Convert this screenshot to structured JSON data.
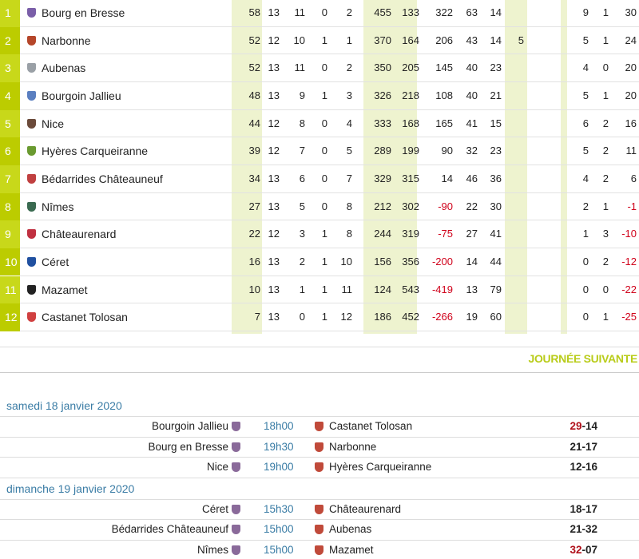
{
  "standings": {
    "rows": [
      {
        "rank": 1,
        "team": "Bourg en Bresse",
        "stats": [
          58,
          13,
          11,
          0,
          2,
          455,
          133,
          322,
          63,
          14,
          null,
          9,
          1,
          30
        ]
      },
      {
        "rank": 2,
        "team": "Narbonne",
        "stats": [
          52,
          12,
          10,
          1,
          1,
          370,
          164,
          206,
          43,
          14,
          5,
          5,
          1,
          24
        ]
      },
      {
        "rank": 3,
        "team": "Aubenas",
        "stats": [
          52,
          13,
          11,
          0,
          2,
          350,
          205,
          145,
          40,
          23,
          null,
          4,
          0,
          20
        ]
      },
      {
        "rank": 4,
        "team": "Bourgoin Jallieu",
        "stats": [
          48,
          13,
          9,
          1,
          3,
          326,
          218,
          108,
          40,
          21,
          null,
          5,
          1,
          20
        ]
      },
      {
        "rank": 5,
        "team": "Nice",
        "stats": [
          44,
          12,
          8,
          0,
          4,
          333,
          168,
          165,
          41,
          15,
          null,
          6,
          2,
          16
        ]
      },
      {
        "rank": 6,
        "team": "Hyères Carqueiranne",
        "stats": [
          39,
          12,
          7,
          0,
          5,
          289,
          199,
          90,
          32,
          23,
          null,
          5,
          2,
          11
        ]
      },
      {
        "rank": 7,
        "team": "Bédarrides Châteauneuf",
        "stats": [
          34,
          13,
          6,
          0,
          7,
          329,
          315,
          14,
          46,
          36,
          null,
          4,
          2,
          6
        ]
      },
      {
        "rank": 8,
        "team": "Nîmes",
        "stats": [
          27,
          13,
          5,
          0,
          8,
          212,
          302,
          -90,
          22,
          30,
          null,
          2,
          1,
          -1
        ]
      },
      {
        "rank": 9,
        "team": "Châteaurenard",
        "stats": [
          22,
          12,
          3,
          1,
          8,
          244,
          319,
          -75,
          27,
          41,
          null,
          1,
          3,
          -10
        ]
      },
      {
        "rank": 10,
        "team": "Céret",
        "stats": [
          16,
          13,
          2,
          1,
          10,
          156,
          356,
          -200,
          14,
          44,
          null,
          0,
          2,
          -12
        ]
      },
      {
        "rank": 11,
        "team": "Mazamet",
        "stats": [
          10,
          13,
          1,
          1,
          11,
          124,
          543,
          -419,
          13,
          79,
          null,
          0,
          0,
          -22
        ]
      },
      {
        "rank": 12,
        "team": "Castanet Tolosan",
        "stats": [
          7,
          13,
          0,
          1,
          12,
          186,
          452,
          -266,
          19,
          60,
          null,
          0,
          1,
          -25
        ]
      }
    ]
  },
  "next_round": {
    "title": "JOURNÉE SUIVANTE",
    "days": [
      {
        "date": "samedi 18 janvier 2020",
        "matches": [
          {
            "home": "Bourgoin Jallieu",
            "time": "18h00",
            "away": "Castanet Tolosan",
            "score": "29-14",
            "highlight": "home"
          },
          {
            "home": "Bourg en Bresse",
            "time": "19h30",
            "away": "Narbonne",
            "score": "21-17"
          },
          {
            "home": "Nice",
            "time": "19h00",
            "away": "Hyères Carqueiranne",
            "score": "12-16"
          }
        ]
      },
      {
        "date": "dimanche 19 janvier 2020",
        "matches": [
          {
            "home": "Céret",
            "time": "15h30",
            "away": "Châteaurenard",
            "score": "18-17"
          },
          {
            "home": "Bédarrides Châteauneuf",
            "time": "15h00",
            "away": "Aubenas",
            "score": "21-32"
          },
          {
            "home": "Nîmes",
            "time": "15h00",
            "away": "Mazamet",
            "score": "32-07",
            "highlight": "home"
          }
        ]
      }
    ]
  }
}
